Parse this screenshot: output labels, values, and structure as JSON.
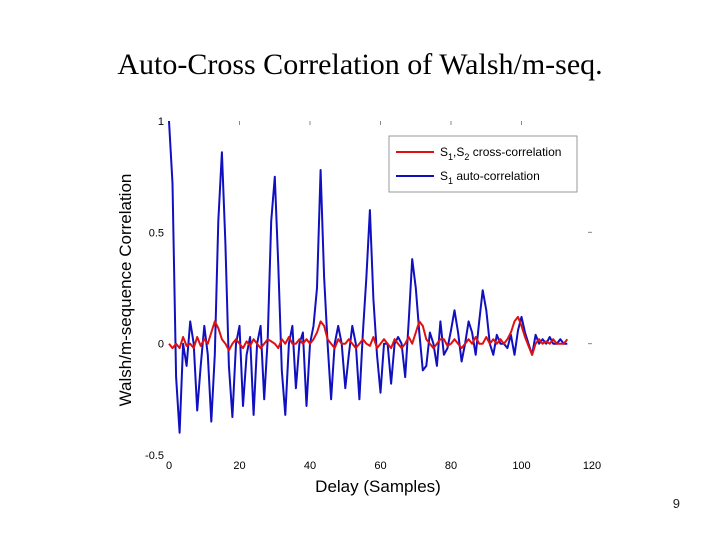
{
  "slide": {
    "title": "Auto-Cross Correlation of Walsh/m-seq.",
    "page_number": "9"
  },
  "chart_data": {
    "type": "line",
    "xlabel": "Delay (Samples)",
    "ylabel": "Walsh/m-sequence Correlation",
    "xlim": [
      0,
      120
    ],
    "ylim": [
      -0.5,
      1
    ],
    "x_ticks": [
      "0",
      "20",
      "40",
      "60",
      "80",
      "100",
      "120"
    ],
    "y_ticks": [
      "-0.5",
      "0",
      "0.5",
      "1"
    ],
    "legend_position": "top-right",
    "grid": false,
    "series": [
      {
        "name": "S1,S2 cross-correlation",
        "legend_parts": [
          "S",
          "1",
          ",S",
          "2",
          " cross-correlation"
        ],
        "color": "#e01010",
        "x": [
          0,
          1,
          2,
          3,
          4,
          5,
          6,
          7,
          8,
          9,
          10,
          11,
          12,
          13,
          14,
          15,
          16,
          17,
          18,
          19,
          20,
          21,
          22,
          23,
          24,
          25,
          26,
          27,
          28,
          29,
          30,
          31,
          32,
          33,
          34,
          35,
          36,
          37,
          38,
          39,
          40,
          41,
          42,
          43,
          44,
          45,
          46,
          47,
          48,
          49,
          50,
          51,
          52,
          53,
          54,
          55,
          56,
          57,
          58,
          59,
          60,
          61,
          62,
          63,
          64,
          65,
          66,
          67,
          68,
          69,
          70,
          71,
          72,
          73,
          74,
          75,
          76,
          77,
          78,
          79,
          80,
          81,
          82,
          83,
          84,
          85,
          86,
          87,
          88,
          89,
          90,
          91,
          92,
          93,
          94,
          95,
          96,
          97,
          98,
          99,
          100,
          101,
          102,
          103,
          104,
          105,
          106,
          107,
          108,
          109,
          110,
          111,
          112,
          113
        ],
        "y": [
          0.0,
          -0.02,
          0.0,
          -0.02,
          0.03,
          -0.01,
          0.0,
          -0.02,
          0.03,
          -0.01,
          0.02,
          0.0,
          0.05,
          0.1,
          0.07,
          0.02,
          0.0,
          -0.03,
          0.0,
          0.02,
          0.0,
          -0.02,
          0.01,
          -0.01,
          0.02,
          0.0,
          -0.02,
          0.0,
          0.02,
          0.01,
          0.0,
          -0.02,
          0.02,
          0.0,
          0.03,
          0.0,
          0.0,
          0.02,
          0.0,
          0.02,
          0.0,
          0.02,
          0.05,
          0.1,
          0.08,
          0.02,
          0.0,
          -0.02,
          0.02,
          0.0,
          0.0,
          0.02,
          0.0,
          -0.02,
          0.0,
          0.02,
          0.0,
          -0.01,
          0.03,
          -0.02,
          0.0,
          0.02,
          0.0,
          -0.02,
          0.02,
          0.0,
          -0.02,
          0.0,
          0.03,
          0.0,
          0.05,
          0.1,
          0.08,
          0.02,
          0.0,
          -0.02,
          0.0,
          0.02,
          0.02,
          -0.01,
          0.0,
          0.02,
          0.0,
          -0.02,
          0.0,
          0.02,
          0.0,
          0.03,
          0.0,
          0.0,
          0.03,
          0.0,
          0.02,
          0.0,
          0.02,
          0.0,
          0.02,
          0.05,
          0.1,
          0.12,
          0.08,
          0.03,
          -0.01,
          -0.05,
          0.0,
          0.02,
          0.0,
          0.01,
          0.0,
          0.02,
          0.0,
          0.0,
          0.0,
          0.02
        ]
      },
      {
        "name": "S1 auto-correlation",
        "legend_parts": [
          "S",
          "1",
          " auto-correlation",
          "",
          ""
        ],
        "color": "#1010c0",
        "x": [
          0,
          1,
          2,
          3,
          4,
          5,
          6,
          7,
          8,
          9,
          10,
          11,
          12,
          13,
          14,
          15,
          16,
          17,
          18,
          19,
          20,
          21,
          22,
          23,
          24,
          25,
          26,
          27,
          28,
          29,
          30,
          31,
          32,
          33,
          34,
          35,
          36,
          37,
          38,
          39,
          40,
          41,
          42,
          43,
          44,
          45,
          46,
          47,
          48,
          49,
          50,
          51,
          52,
          53,
          54,
          55,
          56,
          57,
          58,
          59,
          60,
          61,
          62,
          63,
          64,
          65,
          66,
          67,
          68,
          69,
          70,
          71,
          72,
          73,
          74,
          75,
          76,
          77,
          78,
          79,
          80,
          81,
          82,
          83,
          84,
          85,
          86,
          87,
          88,
          89,
          90,
          91,
          92,
          93,
          94,
          95,
          96,
          97,
          98,
          99,
          100,
          101,
          102,
          103,
          104,
          105,
          106,
          107,
          108,
          109,
          110,
          111,
          112,
          113
        ],
        "y": [
          1.0,
          0.72,
          -0.15,
          -0.4,
          0.0,
          -0.1,
          0.1,
          0.0,
          -0.3,
          -0.1,
          0.08,
          -0.05,
          -0.35,
          -0.05,
          0.55,
          0.86,
          0.45,
          -0.1,
          -0.33,
          0.0,
          0.08,
          -0.28,
          -0.05,
          0.03,
          -0.32,
          0.0,
          0.08,
          -0.25,
          0.02,
          0.55,
          0.75,
          0.35,
          -0.12,
          -0.32,
          0.0,
          0.08,
          -0.2,
          0.0,
          0.05,
          -0.28,
          0.0,
          0.08,
          0.25,
          0.78,
          0.3,
          0.0,
          -0.25,
          0.0,
          0.08,
          0.0,
          -0.2,
          -0.05,
          0.08,
          0.0,
          -0.25,
          0.05,
          0.3,
          0.6,
          0.2,
          -0.05,
          -0.22,
          0.0,
          0.0,
          -0.18,
          0.0,
          0.03,
          0.0,
          -0.15,
          0.1,
          0.38,
          0.25,
          0.05,
          -0.12,
          -0.1,
          0.05,
          0.0,
          -0.1,
          0.1,
          -0.05,
          -0.02,
          0.06,
          0.15,
          0.05,
          -0.08,
          0.0,
          0.1,
          0.05,
          -0.05,
          0.1,
          0.24,
          0.15,
          0.0,
          -0.05,
          0.04,
          0.0,
          0.0,
          -0.02,
          0.04,
          -0.05,
          0.06,
          0.12,
          0.05,
          0.0,
          -0.05,
          0.04,
          0.0,
          0.02,
          0.0,
          0.03,
          0.0,
          0.0,
          0.02,
          0.0,
          0.0
        ]
      }
    ]
  }
}
